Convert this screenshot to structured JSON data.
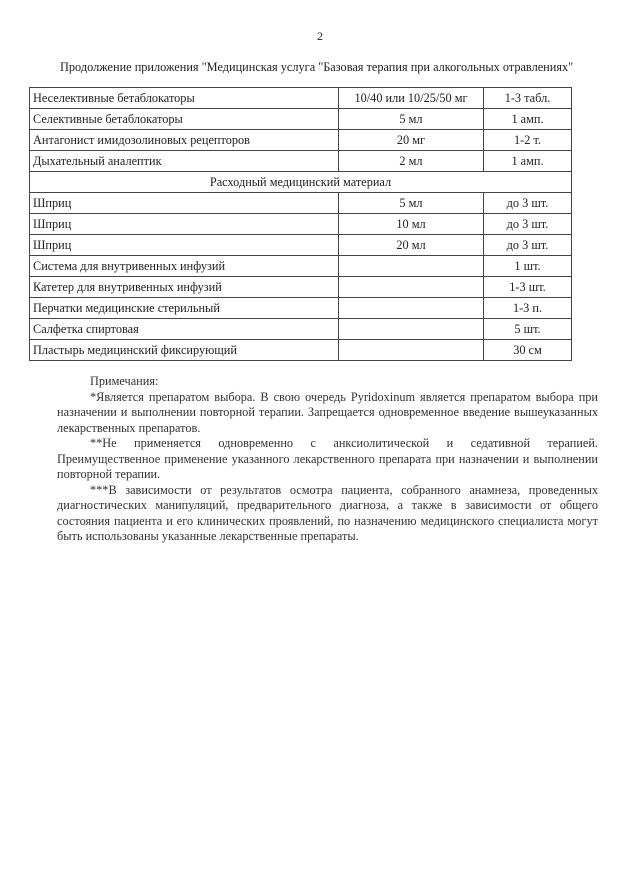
{
  "page_number": "2",
  "subtitle": "Продолжение приложения \"Медицинская услуга \"Базовая терапия при алкогольных отравлениях\"",
  "table": {
    "rows_top": [
      {
        "name": "Неселективные бетаблокаторы",
        "dose": "10/40 или 10/25/50 мг",
        "qty": "1-3 табл."
      },
      {
        "name": "Селективные бетаблокаторы",
        "dose": "5 мл",
        "qty": "1 амп."
      },
      {
        "name": "Антагонист имидозолиновых рецепторов",
        "dose": "20 мг",
        "qty": "1-2 т."
      },
      {
        "name": "Дыхательный аналептик",
        "dose": "2 мл",
        "qty": "1 амп."
      }
    ],
    "section_title": "Расходный медицинский материал",
    "rows_bottom": [
      {
        "name": "Шприц",
        "dose": "5 мл",
        "qty": "до 3 шт."
      },
      {
        "name": "Шприц",
        "dose": "10 мл",
        "qty": "до 3 шт."
      },
      {
        "name": "Шприц",
        "dose": "20 мл",
        "qty": "до 3 шт."
      },
      {
        "name": "Система для внутривенных инфузий",
        "dose": "",
        "qty": "1 шт."
      },
      {
        "name": "Катетер для внутривенных инфузий",
        "dose": "",
        "qty": "1-3 шт."
      },
      {
        "name": "Перчатки медицинские стерильный",
        "dose": "",
        "qty": "1-3 п."
      },
      {
        "name": "Салфетка спиртовая",
        "dose": "",
        "qty": "5 шт."
      },
      {
        "name": "Пластырь медицинский фиксирующий",
        "dose": "",
        "qty": "30 см"
      }
    ]
  },
  "notes": {
    "heading": "Примечания:",
    "items": [
      "*Является препаратом выбора. В свою очередь Pyridoxinum является препаратом выбора при назначении и выполнении повторной терапии. Запрещается одновременное введение вышеуказанных лекарственных препаратов.",
      "**Не применяется одновременно с анксиолитической и седативной терапией. Преимущественное применение указанного лекарственного препарата при назначении и выполнении повторной терапии.",
      "***В зависимости от результатов осмотра пациента, собранного анамнеза, проведенных диагностических манипуляций, предварительного диагноза, а также в зависимости от общего состояния пациента и его клинических проявлений, по назначению медицинского специалиста могут быть использованы указанные лекарственные препараты."
    ]
  }
}
